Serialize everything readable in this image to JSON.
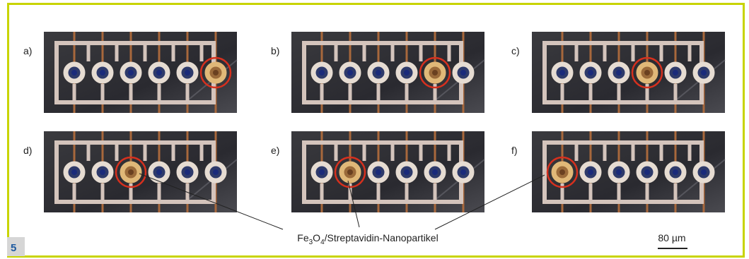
{
  "figure_number": "5",
  "panels": [
    {
      "label": "a)"
    },
    {
      "label": "b)"
    },
    {
      "label": "c)"
    },
    {
      "label": "d)"
    },
    {
      "label": "e)"
    },
    {
      "label": "f)"
    }
  ],
  "caption": {
    "parts": [
      "Fe",
      "3",
      "O",
      "4",
      "/Streptavidin-Nanopartikel"
    ]
  },
  "scale_bar": "80 µm"
}
